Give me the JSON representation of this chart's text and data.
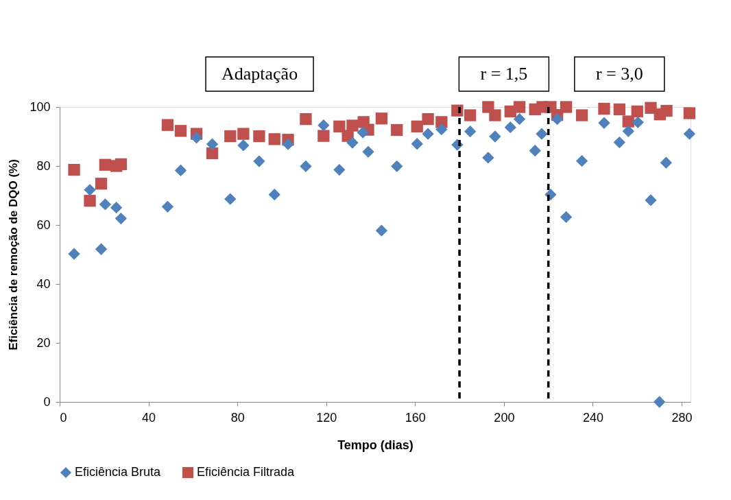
{
  "chart_data": {
    "type": "scatter",
    "xlabel": "Tempo (dias)",
    "ylabel": "Eficiência de remoção de DQO (%)",
    "xlim": [
      0,
      284
    ],
    "xticks": [
      0,
      40,
      80,
      120,
      160,
      200,
      240,
      280
    ],
    "ylim": [
      0,
      100
    ],
    "yticks": [
      0,
      20,
      40,
      60,
      80,
      100
    ],
    "grid": false,
    "legend": "bottom",
    "ref_lines": [
      {
        "axis": "x",
        "value": 180,
        "color": "#000000",
        "line_style": "dashed"
      },
      {
        "axis": "x",
        "value": 220,
        "color": "#000000",
        "line_style": "dashed"
      }
    ],
    "annotations": [
      "Adaptação",
      "r = 1,5",
      "r = 3,0"
    ],
    "series": [
      {
        "name": "Eficiência Bruta",
        "color": "#4f81bd",
        "marker": "diamond",
        "x": [
          6.5,
          13.6,
          18.7,
          20.5,
          25.5,
          27.6,
          48.6,
          54.5,
          61.6,
          68.7,
          76.8,
          82.7,
          89.8,
          96.7,
          102.8,
          110.8,
          118.8,
          125.9,
          131.8,
          136.5,
          138.9,
          144.9,
          151.8,
          160.9,
          165.8,
          171.9,
          179,
          184.8,
          192.9,
          196,
          202.9,
          207,
          214,
          217,
          221,
          224,
          228,
          235.1,
          245.1,
          252,
          256,
          260.3,
          266.1,
          270,
          273,
          283.5
        ],
        "values": [
          50.2,
          71.9,
          51.8,
          67,
          65.9,
          62.2,
          66.2,
          78.5,
          89.6,
          87.4,
          68.8,
          87,
          81.6,
          70.3,
          87.4,
          79.9,
          93.8,
          78.7,
          87.9,
          91.4,
          84.8,
          58.1,
          79.9,
          87.5,
          90.9,
          92.4,
          87.2,
          91.7,
          82.8,
          90,
          93.1,
          95.9,
          85.2,
          90.9,
          70.3,
          95.9,
          62.7,
          81.7,
          94.6,
          88,
          91.8,
          94.8,
          68.4,
          0,
          81.1,
          90.9
        ]
      },
      {
        "name": "Eficiência Filtrada",
        "color": "#c0504d",
        "marker": "square",
        "x": [
          6.5,
          13.6,
          18.7,
          20.5,
          25.5,
          27.6,
          48.6,
          54.5,
          61.6,
          68.7,
          76.8,
          82.7,
          89.8,
          96.7,
          102.8,
          110.8,
          118.8,
          125.9,
          129.7,
          131.8,
          136.8,
          138.9,
          144.9,
          151.8,
          160.9,
          165.8,
          171.9,
          179,
          184.8,
          192.9,
          196,
          202.9,
          207,
          214,
          217.3,
          221,
          224,
          228,
          235.1,
          245.1,
          252,
          256,
          260,
          266.1,
          270.2,
          273.2,
          283.5
        ],
        "values": [
          78.7,
          68.2,
          74,
          80.4,
          80,
          80.6,
          93.9,
          91.9,
          90.9,
          84.3,
          90.1,
          90.9,
          90.1,
          89.1,
          88.9,
          95.9,
          90.2,
          93.4,
          90.2,
          93.7,
          94.9,
          92.3,
          96.1,
          92.2,
          93.4,
          95.9,
          94.9,
          98.8,
          97.2,
          100,
          97.2,
          98.5,
          100,
          99.2,
          100,
          100,
          97.3,
          100,
          97.2,
          99.4,
          99.2,
          95.1,
          98.5,
          99.7,
          97.5,
          98.7,
          97.9
        ]
      }
    ]
  }
}
